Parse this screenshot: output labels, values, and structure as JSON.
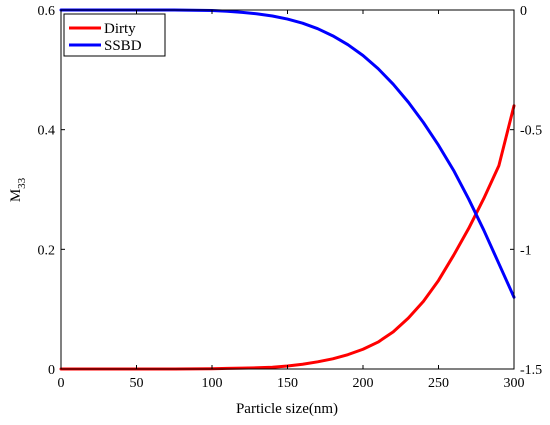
{
  "chart_data": {
    "type": "line",
    "title": "",
    "xlabel": "Particle size(nm)",
    "ylabel": "M",
    "ylabel_subscript": "33",
    "y2label": "",
    "xlim": [
      0,
      300
    ],
    "ylim": [
      0,
      0.6
    ],
    "y2lim": [
      -1.5,
      0
    ],
    "xticks": [
      0,
      50,
      100,
      150,
      200,
      250,
      300
    ],
    "yticks": [
      0,
      0.2,
      0.4,
      0.6
    ],
    "y2ticks": [
      0,
      -0.5,
      -1,
      -1.5
    ],
    "grid": false,
    "legend_position": "top-left",
    "x": [
      0,
      25,
      50,
      75,
      100,
      110,
      120,
      130,
      140,
      150,
      160,
      170,
      180,
      190,
      200,
      210,
      220,
      230,
      240,
      250,
      260,
      270,
      280,
      290,
      300
    ],
    "series": [
      {
        "name": "Dirty",
        "axis": "left",
        "color": "#ff0000",
        "values": [
          0,
          0,
          0,
          0,
          0.0005,
          0.001,
          0.0015,
          0.002,
          0.003,
          0.005,
          0.008,
          0.012,
          0.017,
          0.024,
          0.033,
          0.045,
          0.062,
          0.085,
          0.113,
          0.148,
          0.19,
          0.235,
          0.285,
          0.34,
          0.44
        ]
      },
      {
        "name": "SSBD",
        "axis": "right",
        "color": "#0000ff",
        "values": [
          0,
          0,
          0,
          0,
          -0.002,
          -0.005,
          -0.01,
          -0.016,
          -0.025,
          -0.038,
          -0.055,
          -0.078,
          -0.108,
          -0.145,
          -0.19,
          -0.245,
          -0.31,
          -0.385,
          -0.47,
          -0.565,
          -0.67,
          -0.79,
          -0.92,
          -1.06,
          -1.2
        ]
      }
    ]
  }
}
